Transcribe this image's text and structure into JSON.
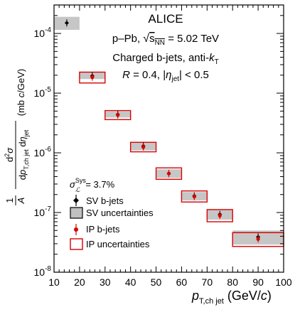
{
  "chart_data": {
    "type": "scatter",
    "title": "",
    "experiment_label": "ALICE",
    "annotations": [
      "p–Pb, √s_NN = 5.02 TeV",
      "Charged b-jets, anti-k_T",
      "R = 0.4, |η_jet| < 0.5"
    ],
    "sys_label": "σ_ℒ^Sys = 3.7%",
    "xlabel": "p_T,ch jet (GeV/c)",
    "ylabel": "1/A d²σ/dp_T,ch jet dη_jet (mb c/GeV)",
    "xlim": [
      10,
      100
    ],
    "ylim": [
      1e-08,
      0.0003
    ],
    "yscale": "log",
    "grid": false,
    "legend_position": "bottom-left",
    "x_ticks": [
      10,
      20,
      30,
      40,
      50,
      60,
      70,
      80,
      90,
      100
    ],
    "y_ticks": [
      "10^{-8}",
      "10^{-7}",
      "10^{-6}",
      "10^{-5}",
      "10^{-4}"
    ],
    "series": [
      {
        "name": "SV b-jets",
        "color": "#000000",
        "marker": "diamond",
        "points": [
          {
            "x": 15,
            "y": 0.00015,
            "x_err": 5,
            "sys_low": 0.000115,
            "sys_high": 0.00019
          },
          {
            "x": 25,
            "y": 1.95e-05,
            "x_err": 5,
            "sys_low": 1.72e-05,
            "sys_high": 2.22e-05
          },
          {
            "x": 35,
            "y": 4.4e-06,
            "x_err": 5,
            "sys_low": 3.9e-06,
            "sys_high": 4.95e-06
          },
          {
            "x": 45,
            "y": 1.3e-06,
            "x_err": 5,
            "sys_low": 1.1e-06,
            "sys_high": 1.5e-06
          },
          {
            "x": 55,
            "y": 4.5e-07,
            "x_err": 5,
            "sys_low": 3.8e-07,
            "sys_high": 5.3e-07
          },
          {
            "x": 65,
            "y": 1.9e-07,
            "x_err": 5,
            "sys_low": 1.6e-07,
            "sys_high": 2.2e-07
          },
          {
            "x": 75,
            "y": 9.3e-08,
            "x_err": 5,
            "sys_low": 7.6e-08,
            "sys_high": 1.1e-07
          },
          {
            "x": 90,
            "y": 3.9e-08,
            "x_err": 10,
            "sys_low": 2.9e-08,
            "sys_high": 5e-08
          }
        ]
      },
      {
        "name": "IP b-jets",
        "color": "#d90000",
        "marker": "circle",
        "points": [
          {
            "x": 25,
            "y": 1.85e-05,
            "x_err": 5,
            "sys_low": 1.48e-05,
            "sys_high": 2.25e-05
          },
          {
            "x": 35,
            "y": 4.3e-06,
            "x_err": 5,
            "sys_low": 3.6e-06,
            "sys_high": 5.1e-06
          },
          {
            "x": 45,
            "y": 1.25e-06,
            "x_err": 5,
            "sys_low": 1.04e-06,
            "sys_high": 1.5e-06
          },
          {
            "x": 55,
            "y": 4.5e-07,
            "x_err": 5,
            "sys_low": 3.6e-07,
            "sys_high": 5.6e-07
          },
          {
            "x": 65,
            "y": 1.85e-07,
            "x_err": 5,
            "sys_low": 1.5e-07,
            "sys_high": 2.3e-07
          },
          {
            "x": 75,
            "y": 8.9e-08,
            "x_err": 5,
            "sys_low": 7e-08,
            "sys_high": 1.12e-07
          },
          {
            "x": 90,
            "y": 3.6e-08,
            "x_err": 10,
            "sys_low": 2.7e-08,
            "sys_high": 4.6e-08
          }
        ]
      }
    ],
    "legend": [
      {
        "label": "SV b-jets",
        "kind": "sv-marker"
      },
      {
        "label": "SV uncertainties",
        "kind": "sv-box"
      },
      {
        "label": "IP b-jets",
        "kind": "ip-marker"
      },
      {
        "label": "IP uncertainties",
        "kind": "ip-box"
      }
    ]
  }
}
